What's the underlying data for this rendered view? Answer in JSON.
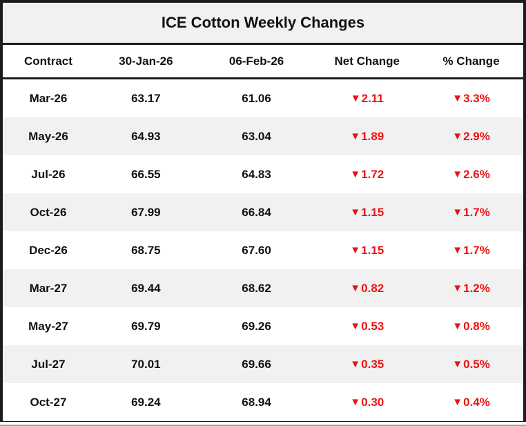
{
  "title": "ICE Cotton Weekly Changes",
  "colors": {
    "red": "#ee1111",
    "stripe": "#f1f1f1",
    "border": "#1c1c1c",
    "title_bg": "#f1f1f1"
  },
  "icons": {
    "down_triangle": "▼"
  },
  "chart_data": {
    "type": "table",
    "title": "ICE Cotton Weekly Changes",
    "columns": [
      "Contract",
      "30-Jan-26",
      "06-Feb-26",
      "Net Change",
      "% Change"
    ],
    "rows": [
      {
        "contract": "Mar-26",
        "prev": "63.17",
        "curr": "61.06",
        "net": "2.11",
        "pct": "3.3%",
        "direction": "down"
      },
      {
        "contract": "May-26",
        "prev": "64.93",
        "curr": "63.04",
        "net": "1.89",
        "pct": "2.9%",
        "direction": "down"
      },
      {
        "contract": "Jul-26",
        "prev": "66.55",
        "curr": "64.83",
        "net": "1.72",
        "pct": "2.6%",
        "direction": "down"
      },
      {
        "contract": "Oct-26",
        "prev": "67.99",
        "curr": "66.84",
        "net": "1.15",
        "pct": "1.7%",
        "direction": "down"
      },
      {
        "contract": "Dec-26",
        "prev": "68.75",
        "curr": "67.60",
        "net": "1.15",
        "pct": "1.7%",
        "direction": "down"
      },
      {
        "contract": "Mar-27",
        "prev": "69.44",
        "curr": "68.62",
        "net": "0.82",
        "pct": "1.2%",
        "direction": "down"
      },
      {
        "contract": "May-27",
        "prev": "69.79",
        "curr": "69.26",
        "net": "0.53",
        "pct": "0.8%",
        "direction": "down"
      },
      {
        "contract": "Jul-27",
        "prev": "70.01",
        "curr": "69.66",
        "net": "0.35",
        "pct": "0.5%",
        "direction": "down"
      },
      {
        "contract": "Oct-27",
        "prev": "69.24",
        "curr": "68.94",
        "net": "0.30",
        "pct": "0.4%",
        "direction": "down"
      }
    ]
  }
}
